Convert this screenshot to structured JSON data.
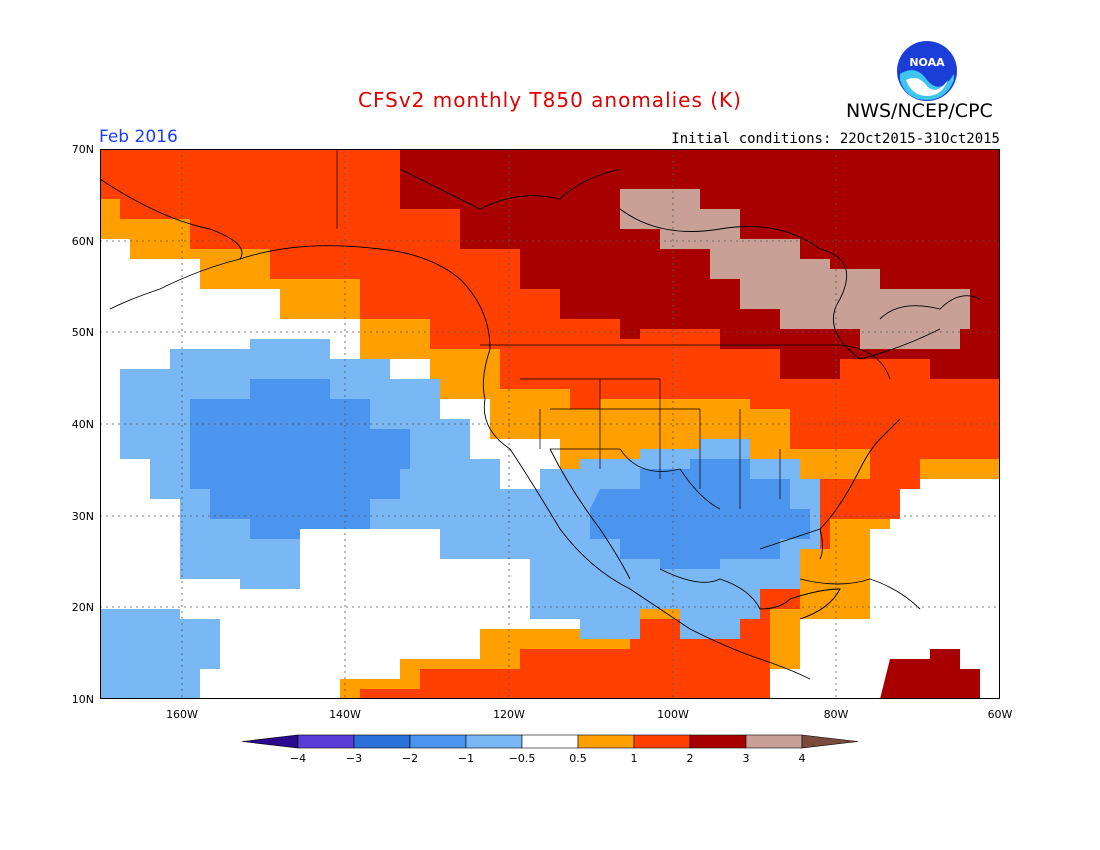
{
  "header": {
    "title": "CFSv2 monthly T850 anomalies (K)",
    "agency": "NWS/NCEP/CPC",
    "logo_text": "NOAA",
    "month": "Feb 2016",
    "initial_conditions": "Initial conditions: 22Oct2015-31Oct2015"
  },
  "map": {
    "lat_labels": [
      "70N",
      "60N",
      "50N",
      "40N",
      "30N",
      "20N",
      "10N"
    ],
    "lon_labels": [
      "160W",
      "140W",
      "120W",
      "100W",
      "80W",
      "60W"
    ],
    "extent": {
      "lon_min": -170,
      "lon_max": -60,
      "lat_min": 10,
      "lat_max": 70
    }
  },
  "colorbar": {
    "labels": [
      "−4",
      "−3",
      "−2",
      "−1",
      "−0.5",
      "0.5",
      "1",
      "2",
      "3",
      "4"
    ],
    "colors": [
      "#2a0a8c",
      "#5a3cd6",
      "#2b6fd8",
      "#4c95ee",
      "#79b7f5",
      "#ffffff",
      "#ffa000",
      "#ff4000",
      "#a80000",
      "#c8a096",
      "#7a4a3c"
    ]
  }
}
